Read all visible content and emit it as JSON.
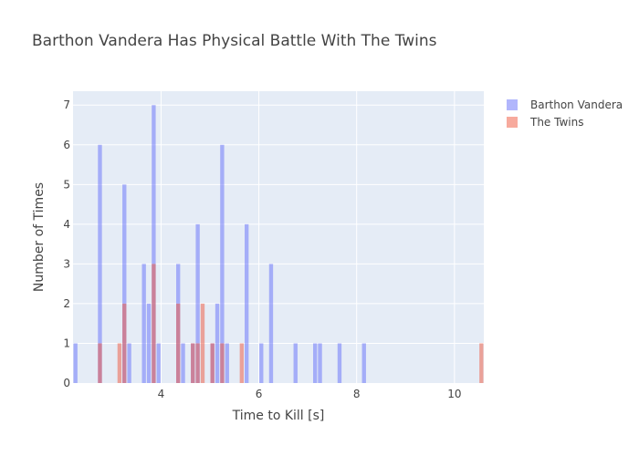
{
  "chart_data": {
    "type": "bar",
    "title": "Barthon Vandera Has Physical Battle With The Twins",
    "xlabel": "Time to Kill [s]",
    "ylabel": "Number of Times",
    "xlim": [
      2.2,
      10.6
    ],
    "ylim": [
      0,
      7.35
    ],
    "bin_width": 0.1,
    "xticks": [
      4,
      6,
      8,
      10
    ],
    "yticks": [
      0,
      1,
      2,
      3,
      4,
      5,
      6,
      7
    ],
    "barmode": "overlay",
    "grid": true,
    "legend": "top-right",
    "series": [
      {
        "name": "Barthon Vandera",
        "color": "#636efa",
        "points": [
          {
            "x": 2.25,
            "y": 1
          },
          {
            "x": 2.75,
            "y": 6
          },
          {
            "x": 3.25,
            "y": 5
          },
          {
            "x": 3.35,
            "y": 1
          },
          {
            "x": 3.65,
            "y": 3
          },
          {
            "x": 3.75,
            "y": 2
          },
          {
            "x": 3.85,
            "y": 7
          },
          {
            "x": 3.95,
            "y": 1
          },
          {
            "x": 4.35,
            "y": 3
          },
          {
            "x": 4.45,
            "y": 1
          },
          {
            "x": 4.65,
            "y": 1
          },
          {
            "x": 4.75,
            "y": 4
          },
          {
            "x": 5.05,
            "y": 1
          },
          {
            "x": 5.15,
            "y": 2
          },
          {
            "x": 5.25,
            "y": 6
          },
          {
            "x": 5.35,
            "y": 1
          },
          {
            "x": 5.75,
            "y": 4
          },
          {
            "x": 6.05,
            "y": 1
          },
          {
            "x": 6.25,
            "y": 3
          },
          {
            "x": 6.75,
            "y": 1
          },
          {
            "x": 7.15,
            "y": 1
          },
          {
            "x": 7.25,
            "y": 1
          },
          {
            "x": 7.65,
            "y": 1
          },
          {
            "x": 8.15,
            "y": 1
          }
        ]
      },
      {
        "name": "The Twins",
        "color": "#ef553b",
        "points": [
          {
            "x": 2.75,
            "y": 1
          },
          {
            "x": 3.15,
            "y": 1
          },
          {
            "x": 3.25,
            "y": 2
          },
          {
            "x": 3.85,
            "y": 3
          },
          {
            "x": 4.35,
            "y": 2
          },
          {
            "x": 4.65,
            "y": 1
          },
          {
            "x": 4.75,
            "y": 1
          },
          {
            "x": 4.85,
            "y": 2
          },
          {
            "x": 5.05,
            "y": 1
          },
          {
            "x": 5.25,
            "y": 1
          },
          {
            "x": 5.65,
            "y": 1
          },
          {
            "x": 10.55,
            "y": 1
          }
        ]
      }
    ]
  }
}
